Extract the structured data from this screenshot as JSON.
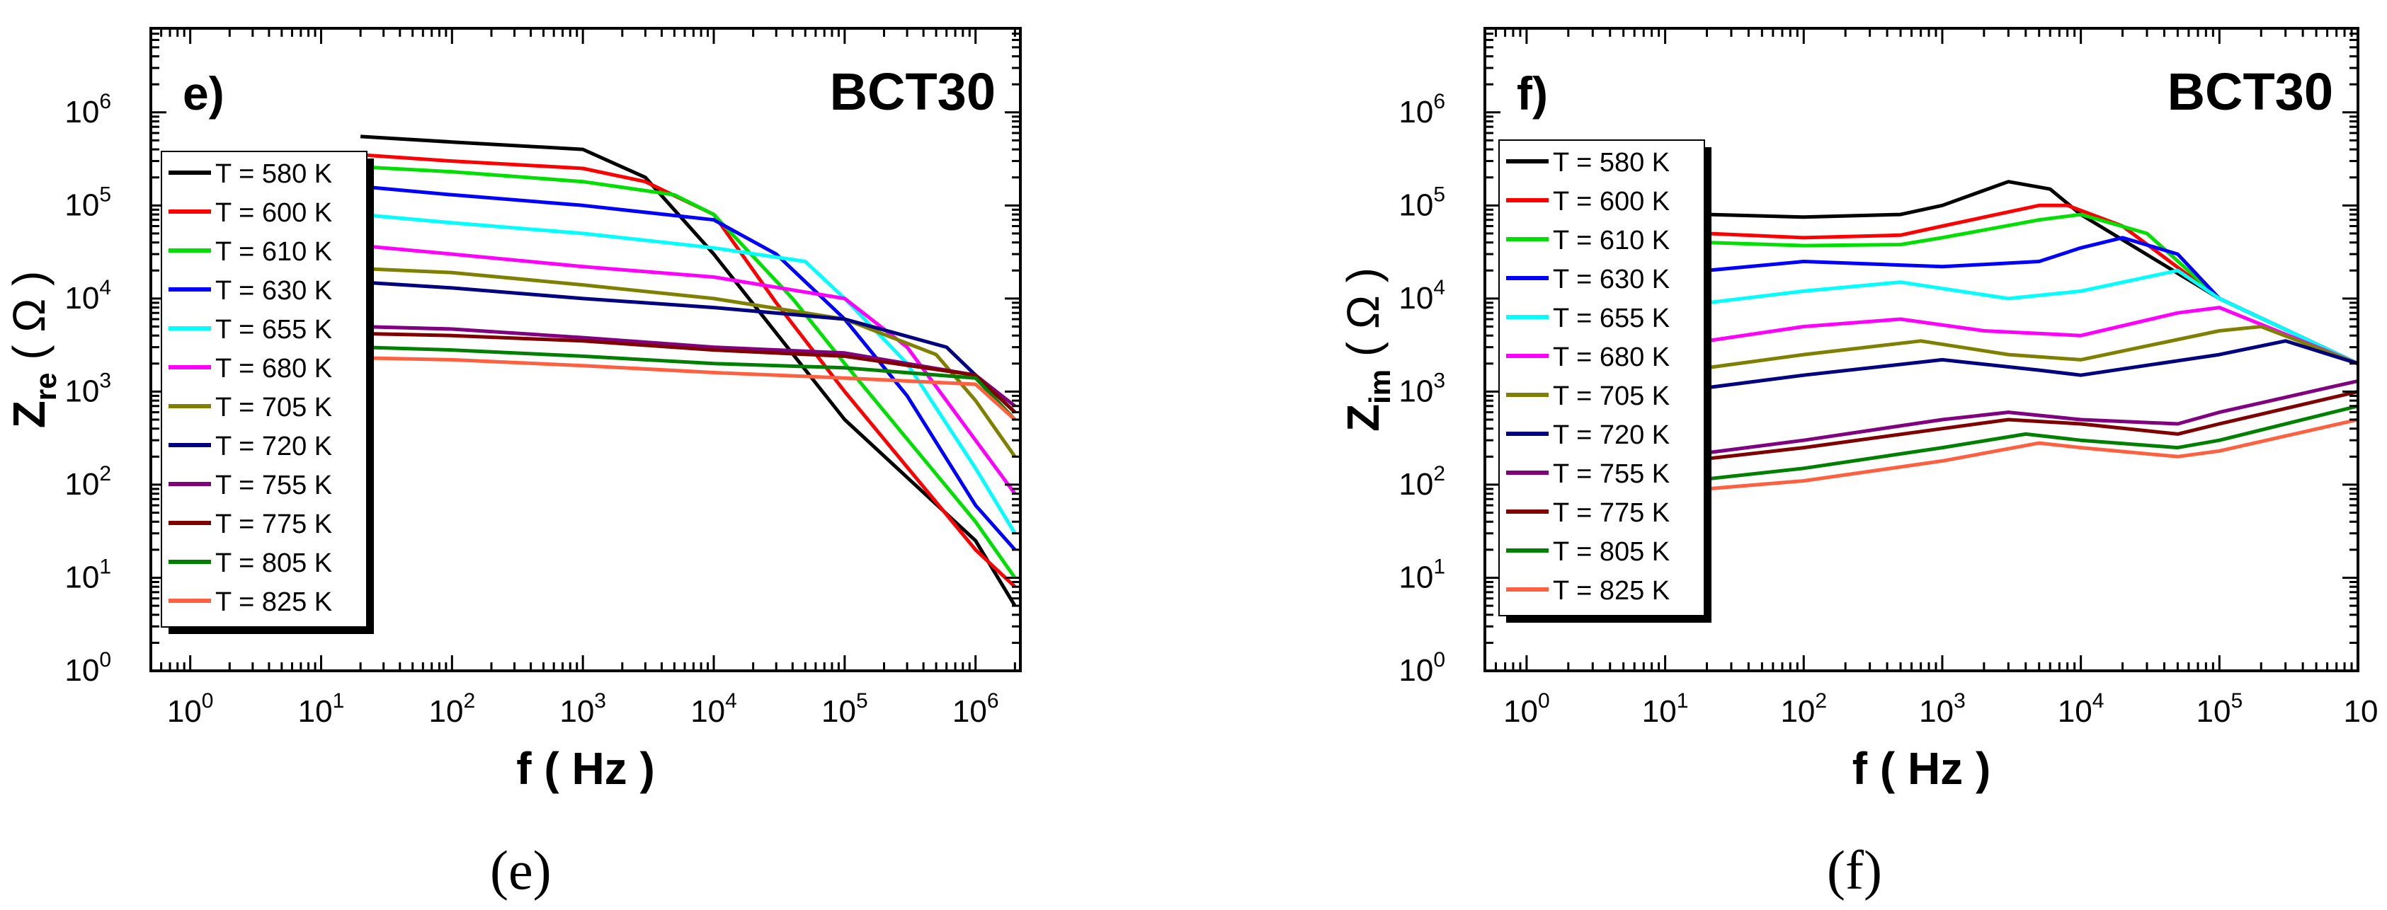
{
  "captions": [
    "(e)",
    "(f)"
  ],
  "legend_labels": [
    "T = 580 K",
    "T = 600 K",
    "T = 610 K",
    "T = 630 K",
    "T = 655 K",
    "T = 680 K",
    "T = 705 K",
    "T = 720 K",
    "T = 755 K",
    "T = 775 K",
    "T = 805 K",
    "T = 825 K"
  ],
  "series_colors": [
    "#000000",
    "#ff0000",
    "#00e000",
    "#0000ff",
    "#00ffff",
    "#ff00ff",
    "#808000",
    "#000080",
    "#800080",
    "#800000",
    "#008000",
    "#ff6040"
  ],
  "chart_data": [
    {
      "type": "line",
      "panel_label": "e)",
      "title": "BCT30",
      "xlabel": "f ( Hz )",
      "ylabel_main": "Z",
      "ylabel_sub": "re",
      "ylabel_unit": "( Ω )",
      "xscale": "log",
      "yscale": "log",
      "xlim": [
        0.5,
        2200000
      ],
      "ylim": [
        1,
        8000000
      ],
      "xticks": [
        {
          "base": "10",
          "exp": "0"
        },
        {
          "base": "10",
          "exp": "1"
        },
        {
          "base": "10",
          "exp": "2"
        },
        {
          "base": "10",
          "exp": "3"
        },
        {
          "base": "10",
          "exp": "4"
        },
        {
          "base": "10",
          "exp": "5"
        },
        {
          "base": "10",
          "exp": "6"
        }
      ],
      "yticks": [
        {
          "base": "10",
          "exp": "0"
        },
        {
          "base": "10",
          "exp": "1"
        },
        {
          "base": "10",
          "exp": "2"
        },
        {
          "base": "10",
          "exp": "3"
        },
        {
          "base": "10",
          "exp": "4"
        },
        {
          "base": "10",
          "exp": "5"
        },
        {
          "base": "10",
          "exp": "6"
        }
      ],
      "legend_position": "upper-left",
      "series": [
        {
          "name": "T = 580 K",
          "x": [
            20,
            100,
            1000,
            3000,
            10000,
            100000,
            1000000,
            2000000
          ],
          "y": [
            550000,
            480000,
            400000,
            200000,
            30000,
            500,
            25,
            5
          ]
        },
        {
          "name": "T = 600 K",
          "x": [
            20,
            100,
            1000,
            3000,
            10000,
            30000,
            100000,
            1000000,
            2000000
          ],
          "y": [
            350000,
            300000,
            250000,
            180000,
            80000,
            9000,
            1000,
            20,
            8
          ]
        },
        {
          "name": "T = 610 K",
          "x": [
            20,
            100,
            1000,
            5000,
            10000,
            40000,
            100000,
            1000000,
            2000000
          ],
          "y": [
            260000,
            230000,
            180000,
            130000,
            80000,
            10000,
            2000,
            40,
            10
          ]
        },
        {
          "name": "T = 630 K",
          "x": [
            20,
            100,
            1000,
            10000,
            30000,
            100000,
            300000,
            1000000,
            2000000
          ],
          "y": [
            160000,
            130000,
            100000,
            70000,
            30000,
            6000,
            900,
            60,
            20
          ]
        },
        {
          "name": "T = 655 K",
          "x": [
            20,
            100,
            1000,
            10000,
            50000,
            100000,
            300000,
            1000000,
            2000000
          ],
          "y": [
            80000,
            65000,
            50000,
            35000,
            25000,
            10000,
            2000,
            150,
            30
          ]
        },
        {
          "name": "T = 680 K",
          "x": [
            20,
            100,
            1000,
            10000,
            100000,
            300000,
            1000000,
            2000000
          ],
          "y": [
            37000,
            30000,
            22000,
            17000,
            10000,
            3000,
            300,
            80
          ]
        },
        {
          "name": "T = 705 K",
          "x": [
            20,
            100,
            1000,
            10000,
            100000,
            500000,
            1000000,
            2000000
          ],
          "y": [
            21000,
            19000,
            14000,
            10000,
            6000,
            2500,
            800,
            200
          ]
        },
        {
          "name": "T = 720 K",
          "x": [
            20,
            100,
            1000,
            10000,
            100000,
            600000,
            1000000,
            2000000
          ],
          "y": [
            15000,
            13000,
            10000,
            8000,
            6000,
            3000,
            1500,
            600
          ]
        },
        {
          "name": "T = 755 K",
          "x": [
            20,
            100,
            1000,
            10000,
            100000,
            1000000,
            2000000
          ],
          "y": [
            5000,
            4700,
            3800,
            3000,
            2600,
            1500,
            700
          ]
        },
        {
          "name": "T = 775 K",
          "x": [
            20,
            100,
            1000,
            10000,
            100000,
            1000000,
            2000000
          ],
          "y": [
            4200,
            4000,
            3500,
            2800,
            2400,
            1500,
            600
          ]
        },
        {
          "name": "T = 805 K",
          "x": [
            20,
            100,
            1000,
            10000,
            100000,
            1000000,
            2000000
          ],
          "y": [
            3000,
            2800,
            2400,
            2000,
            1800,
            1400,
            500
          ]
        },
        {
          "name": "T = 825 K",
          "x": [
            20,
            100,
            1000,
            10000,
            100000,
            1000000,
            2000000
          ],
          "y": [
            2300,
            2200,
            1900,
            1600,
            1400,
            1200,
            500
          ]
        }
      ]
    },
    {
      "type": "line",
      "panel_label": "f)",
      "title": "BCT30",
      "xlabel": "f ( Hz )",
      "ylabel_main": "Z",
      "ylabel_sub": "im",
      "ylabel_unit": "( Ω )",
      "xscale": "log",
      "yscale": "log",
      "xlim": [
        0.5,
        1000000
      ],
      "ylim": [
        1,
        8000000
      ],
      "xticks": [
        {
          "base": "10",
          "exp": "0"
        },
        {
          "base": "10",
          "exp": "1"
        },
        {
          "base": "10",
          "exp": "2"
        },
        {
          "base": "10",
          "exp": "3"
        },
        {
          "base": "10",
          "exp": "4"
        },
        {
          "base": "10",
          "exp": "5"
        }
      ],
      "yticks": [
        {
          "base": "10",
          "exp": "0"
        },
        {
          "base": "10",
          "exp": "1"
        },
        {
          "base": "10",
          "exp": "2"
        },
        {
          "base": "10",
          "exp": "3"
        },
        {
          "base": "10",
          "exp": "4"
        },
        {
          "base": "10",
          "exp": "5"
        },
        {
          "base": "10",
          "exp": "6"
        }
      ],
      "edge_tick_label": "10",
      "legend_position": "upper-left",
      "series": [
        {
          "name": "T = 580 K",
          "x": [
            20,
            100,
            500,
            1000,
            3000,
            6000,
            10000,
            100000,
            1000000
          ],
          "y": [
            80000,
            75000,
            80000,
            100000,
            180000,
            150000,
            80000,
            10000,
            2000
          ]
        },
        {
          "name": "T = 600 K",
          "x": [
            20,
            100,
            500,
            1000,
            5000,
            8000,
            20000,
            100000,
            1000000
          ],
          "y": [
            50000,
            45000,
            48000,
            60000,
            100000,
            100000,
            60000,
            10000,
            2000
          ]
        },
        {
          "name": "T = 610 K",
          "x": [
            20,
            100,
            500,
            1000,
            5000,
            10000,
            30000,
            100000,
            1000000
          ],
          "y": [
            40000,
            37000,
            38000,
            45000,
            70000,
            80000,
            50000,
            10000,
            2000
          ]
        },
        {
          "name": "T = 630 K",
          "x": [
            20,
            100,
            1000,
            5000,
            10000,
            20000,
            50000,
            100000,
            1000000
          ],
          "y": [
            20000,
            25000,
            22000,
            25000,
            35000,
            45000,
            30000,
            10000,
            2000
          ]
        },
        {
          "name": "T = 655 K",
          "x": [
            20,
            100,
            500,
            3000,
            10000,
            50000,
            100000,
            1000000
          ],
          "y": [
            9000,
            12000,
            15000,
            10000,
            12000,
            20000,
            10000,
            2000
          ]
        },
        {
          "name": "T = 680 K",
          "x": [
            20,
            100,
            500,
            2000,
            10000,
            50000,
            100000,
            1000000
          ],
          "y": [
            3500,
            5000,
            6000,
            4500,
            4000,
            7000,
            8000,
            2000
          ]
        },
        {
          "name": "T = 705 K",
          "x": [
            20,
            100,
            700,
            3000,
            10000,
            100000,
            200000,
            1000000
          ],
          "y": [
            1800,
            2500,
            3500,
            2500,
            2200,
            4500,
            5000,
            2000
          ]
        },
        {
          "name": "T = 720 K",
          "x": [
            20,
            100,
            1000,
            5000,
            10000,
            100000,
            300000,
            1000000
          ],
          "y": [
            1100,
            1500,
            2200,
            1700,
            1500,
            2500,
            3500,
            2000
          ]
        },
        {
          "name": "T = 755 K",
          "x": [
            20,
            100,
            1000,
            3000,
            10000,
            50000,
            100000,
            1000000
          ],
          "y": [
            220,
            300,
            500,
            600,
            500,
            450,
            600,
            1300
          ]
        },
        {
          "name": "T = 775 K",
          "x": [
            20,
            100,
            1000,
            3000,
            10000,
            50000,
            100000,
            1000000
          ],
          "y": [
            190,
            250,
            400,
            500,
            450,
            350,
            450,
            1000
          ]
        },
        {
          "name": "T = 805 K",
          "x": [
            20,
            100,
            1000,
            4000,
            10000,
            50000,
            100000,
            1000000
          ],
          "y": [
            115,
            150,
            250,
            350,
            300,
            250,
            300,
            700
          ]
        },
        {
          "name": "T = 825 K",
          "x": [
            20,
            100,
            1000,
            5000,
            10000,
            50000,
            100000,
            1000000
          ],
          "y": [
            90,
            110,
            180,
            280,
            250,
            200,
            230,
            500
          ]
        }
      ]
    }
  ]
}
